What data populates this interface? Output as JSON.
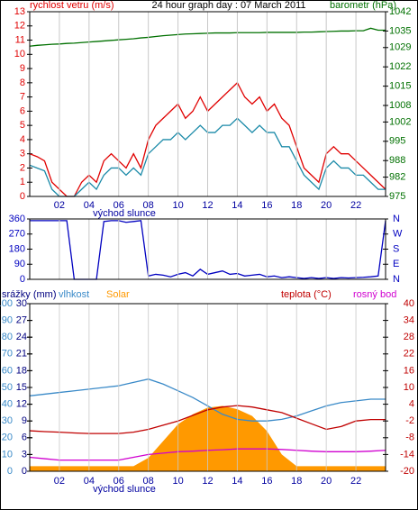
{
  "chart_data": [
    {
      "type": "line",
      "title": "24 hour graph day : 07 March 2011",
      "ylabel": "rychlost vetru (m/s)",
      "y2label": "barometr (hPa)",
      "annotation": "východ slunce",
      "x": [
        0,
        0.5,
        1,
        1.5,
        2,
        2.5,
        3,
        3.5,
        4,
        4.5,
        5,
        5.5,
        6,
        6.5,
        7,
        7.5,
        8,
        8.5,
        9,
        9.5,
        10,
        10.5,
        11,
        11.5,
        12,
        12.5,
        13,
        13.5,
        14,
        14.5,
        15,
        15.5,
        16,
        16.5,
        17,
        17.5,
        18,
        18.5,
        19,
        19.5,
        20,
        20.5,
        21,
        21.5,
        22,
        22.5,
        23,
        23.5,
        24
      ],
      "xlim": [
        0,
        24
      ],
      "xticks": [
        {
          "value": 2,
          "label": "02"
        },
        {
          "value": 4,
          "label": "04"
        },
        {
          "value": 6,
          "label": "06"
        },
        {
          "value": 8,
          "label": "08"
        },
        {
          "value": 10,
          "label": "10"
        },
        {
          "value": 12,
          "label": "12"
        },
        {
          "value": 14,
          "label": "14"
        },
        {
          "value": 16,
          "label": "16"
        },
        {
          "value": 18,
          "label": "18"
        },
        {
          "value": 20,
          "label": "20"
        },
        {
          "value": 22,
          "label": "22"
        }
      ],
      "ylim": [
        0,
        13
      ],
      "yticks": [
        0,
        1,
        2,
        3,
        4,
        5,
        6,
        7,
        8,
        9,
        10,
        11,
        12,
        13
      ],
      "y2lim": [
        975,
        1042
      ],
      "y2ticks": [
        975,
        982,
        988,
        995,
        1002,
        1008,
        1015,
        1022,
        1029,
        1035,
        1042
      ],
      "grid": true,
      "series": [
        {
          "color": "#e00000",
          "values": [
            3,
            2.8,
            2.5,
            1,
            0.5,
            0,
            0,
            1,
            1.5,
            1,
            2.5,
            3,
            2.5,
            2,
            3,
            2,
            4,
            5,
            5.5,
            6,
            6.5,
            5.5,
            6,
            7,
            6,
            6.5,
            7,
            7.5,
            8,
            7,
            6.5,
            7,
            6,
            6.5,
            5.5,
            5,
            3.5,
            2,
            1.5,
            1,
            3,
            3.5,
            3,
            3,
            2.5,
            2,
            1.5,
            1,
            0.5
          ]
        },
        {
          "color": "#1a8aa8",
          "values": [
            2.2,
            2,
            1.8,
            0.5,
            0,
            0,
            0,
            0.5,
            1,
            0.5,
            1.5,
            2,
            2,
            1.5,
            2,
            1.5,
            3,
            3.5,
            4,
            4,
            4.5,
            4,
            4.5,
            5,
            4.5,
            4.5,
            5,
            5,
            5.5,
            5,
            4.5,
            5,
            4.5,
            4.5,
            3.5,
            3.5,
            2.5,
            1.5,
            1,
            0.5,
            2,
            2.5,
            2,
            2,
            1.5,
            1.5,
            1,
            0.5,
            0.5
          ]
        },
        {
          "color": "#007000",
          "axis": "y2",
          "values": [
            1029.5,
            1029.8,
            1030,
            1030.2,
            1030.3,
            1030.5,
            1030.6,
            1030.8,
            1031,
            1031.2,
            1031.4,
            1031.6,
            1031.8,
            1032,
            1032.2,
            1032.5,
            1032.7,
            1033,
            1033.3,
            1033.5,
            1033.7,
            1033.9,
            1034,
            1034.1,
            1034.2,
            1034.3,
            1034.3,
            1034.3,
            1034.4,
            1034.4,
            1034.4,
            1034.4,
            1034.5,
            1034.5,
            1034.5,
            1034.5,
            1034.5,
            1034.6,
            1034.6,
            1034.7,
            1034.8,
            1034.9,
            1035,
            1035,
            1035.1,
            1035.1,
            1036,
            1035.3,
            1035.3
          ]
        }
      ]
    },
    {
      "type": "line",
      "x": [
        0,
        0.5,
        1,
        1.5,
        2,
        2.5,
        3,
        3.5,
        4,
        4.5,
        5,
        5.5,
        6,
        6.5,
        7,
        7.5,
        8,
        8.5,
        9,
        9.5,
        10,
        10.5,
        11,
        11.5,
        12,
        12.5,
        13,
        13.5,
        14,
        14.5,
        15,
        15.5,
        16,
        16.5,
        17,
        17.5,
        18,
        18.5,
        19,
        19.5,
        20,
        20.5,
        21,
        21.5,
        22,
        22.5,
        23,
        23.5,
        24
      ],
      "xlim": [
        0,
        24
      ],
      "xticks": [
        2,
        4,
        6,
        8,
        10,
        12,
        14,
        16,
        18,
        20,
        22
      ],
      "ylim": [
        0,
        360
      ],
      "yticks": [
        0,
        90,
        180,
        270,
        360
      ],
      "y2lim": [
        0,
        360
      ],
      "y2ticks": [
        {
          "value": 0,
          "label": "N"
        },
        {
          "value": 90,
          "label": "E"
        },
        {
          "value": 180,
          "label": "S"
        },
        {
          "value": 270,
          "label": "W"
        },
        {
          "value": 360,
          "label": "N"
        }
      ],
      "grid": true,
      "series": [
        {
          "color": "#0000c0",
          "values": [
            350,
            350,
            350,
            350,
            350,
            350,
            0,
            0,
            0,
            0,
            345,
            350,
            350,
            340,
            345,
            350,
            20,
            30,
            25,
            15,
            30,
            40,
            20,
            60,
            30,
            40,
            50,
            30,
            35,
            20,
            25,
            30,
            15,
            20,
            10,
            15,
            10,
            5,
            10,
            5,
            10,
            5,
            10,
            8,
            10,
            12,
            15,
            20,
            350
          ]
        }
      ]
    },
    {
      "type": "line",
      "ylabel": "srážky (mm)",
      "annotation": "východ slunce",
      "x": [
        0,
        1,
        2,
        3,
        4,
        5,
        6,
        7,
        8,
        9,
        10,
        11,
        12,
        13,
        14,
        15,
        16,
        17,
        18,
        19,
        20,
        21,
        22,
        23,
        24
      ],
      "xlim": [
        0,
        24
      ],
      "xticks": [
        {
          "value": 2,
          "label": "02"
        },
        {
          "value": 4,
          "label": "04"
        },
        {
          "value": 6,
          "label": "06"
        },
        {
          "value": 8,
          "label": "08"
        },
        {
          "value": 10,
          "label": "10"
        },
        {
          "value": 12,
          "label": "12"
        },
        {
          "value": 14,
          "label": "14"
        },
        {
          "value": 16,
          "label": "16"
        },
        {
          "value": 18,
          "label": "18"
        },
        {
          "value": 20,
          "label": "20"
        },
        {
          "value": 22,
          "label": "22"
        }
      ],
      "ylim": [
        0,
        100
      ],
      "yticks": [
        0,
        10,
        20,
        30,
        40,
        50,
        60,
        70,
        80,
        90,
        100
      ],
      "y3lim": [
        0,
        30
      ],
      "y3ticks": [
        0,
        3,
        6,
        9,
        12,
        15,
        18,
        21,
        24,
        27,
        30
      ],
      "y2lim": [
        -20,
        40
      ],
      "y2ticks": [
        -20,
        -14,
        -8,
        -2,
        4,
        10,
        16,
        22,
        28,
        34,
        40
      ],
      "grid": true,
      "series": [
        {
          "name": "Solar",
          "color": "#ff9900",
          "style": "area",
          "values": [
            3,
            3,
            3,
            3,
            3,
            3,
            3,
            3,
            8,
            18,
            28,
            34,
            38,
            39,
            37,
            33,
            24,
            10,
            3,
            3,
            3,
            3,
            3,
            3,
            3
          ]
        },
        {
          "name": "vlhkost",
          "color": "#3a8ac8",
          "values": [
            45,
            46,
            47,
            48,
            49,
            50,
            51,
            53,
            55,
            52,
            48,
            44,
            39,
            34,
            31,
            30,
            30,
            31,
            33,
            36,
            39,
            41,
            42,
            43,
            43
          ]
        },
        {
          "name": "teplota (°C)",
          "color": "#c00000",
          "axis": "y2",
          "values": [
            -5.5,
            -5.8,
            -6,
            -6.3,
            -6.5,
            -6.5,
            -6.5,
            -6,
            -5,
            -3.5,
            -2,
            0,
            2,
            3,
            3.5,
            3,
            2,
            1,
            -1,
            -3,
            -5,
            -4,
            -2,
            -1.5,
            -1.5
          ]
        },
        {
          "name": "rosný bod",
          "color": "#d000d0",
          "axis": "y2",
          "values": [
            -15,
            -15.5,
            -16,
            -16,
            -16,
            -16,
            -16,
            -15,
            -14,
            -13.5,
            -13,
            -12.8,
            -12.5,
            -12.3,
            -12,
            -12,
            -12,
            -12.2,
            -12.5,
            -12.8,
            -13,
            -13,
            -13,
            -12.8,
            -12.5
          ]
        }
      ]
    }
  ]
}
